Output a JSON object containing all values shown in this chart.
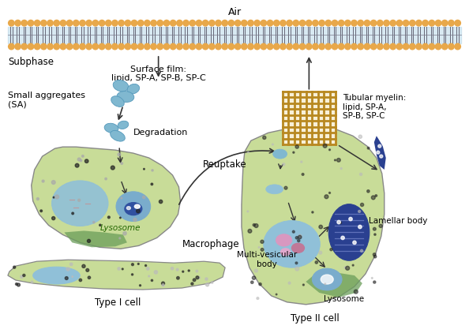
{
  "background_color": "#ffffff",
  "air_label": "Air",
  "subphase_label": "Subphase",
  "surface_film_label": "Surface film:\nlipid, SP-A, SP-B, SP-C",
  "tubular_myelin_label": "Tubular myelin:\nlipid, SP-A,\nSP-B, SP-C",
  "small_aggregates_label": "Small aggregates\n(SA)",
  "degradation_label": "Degradation",
  "reuptake_label": "Reuptake",
  "macrophage_label": "Macrophage",
  "lysosome_label_macro": "Lysosome",
  "type1_label": "Type I cell",
  "type2_label": "Type II cell",
  "mvb_label": "Multi-vesicular\nbody",
  "lamellar_label": "Lamellar body",
  "lysosome_label_type2": "Lysosome",
  "colors": {
    "membrane_circles": "#E8A84A",
    "membrane_tail": "#888899",
    "membrane_blue": "#B8D8E8",
    "cell_green_light": "#C8DC98",
    "cell_green_mid": "#B0CC80",
    "cell_green_dark": "#6B9E5A",
    "nucleus_blue_light": "#90C0D8",
    "nucleus_blue_mid": "#6AAAC8",
    "lysosome_blue": "#7AACCC",
    "lamellar_dark": "#2A4090",
    "sa_blue": "#80B8D0",
    "tubular_brown": "#B88820",
    "dot_dark": "#222222",
    "dot_gray": "#AAAAAA",
    "text_color": "#000000",
    "arrow_color": "#333333",
    "border_color": "#888888"
  }
}
